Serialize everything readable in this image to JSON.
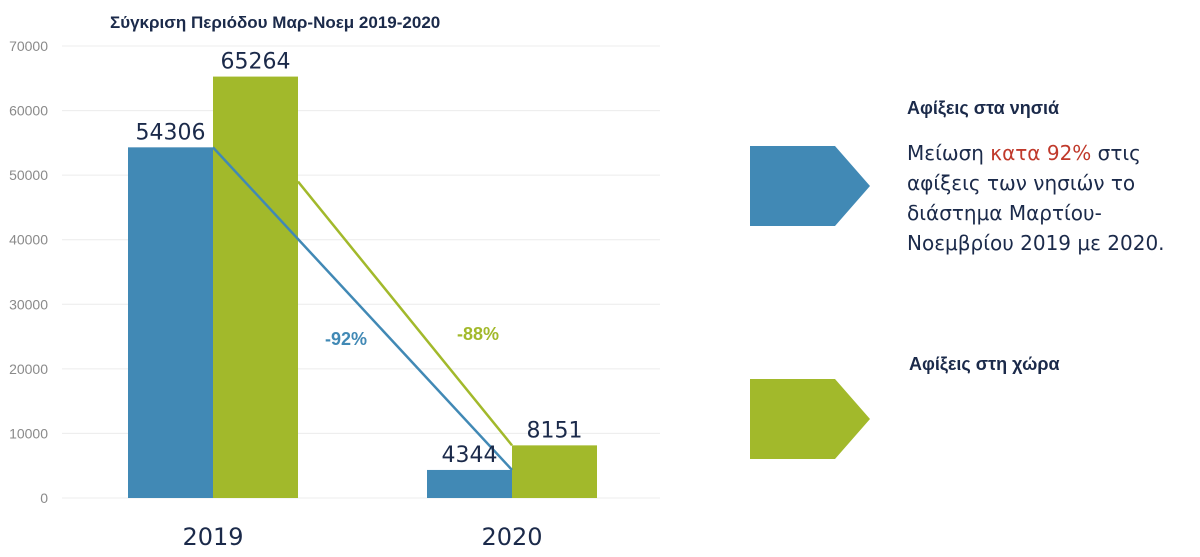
{
  "chart_data": {
    "type": "bar",
    "title": "Σύγκριση Περιόδου Μαρ-Νοεμ 2019-2020",
    "categories": [
      "2019",
      "2020"
    ],
    "series": [
      {
        "name": "Αφίξεις στα νησιά",
        "values": [
          54306,
          4344
        ],
        "labels": [
          "54306",
          "4344"
        ],
        "color": "#4189b5",
        "change_label": "-92%"
      },
      {
        "name": "Αφίξεις στη χώρα",
        "values": [
          65264,
          8151
        ],
        "labels": [
          "65264",
          "8151"
        ],
        "color": "#a2b92b",
        "change_label": "-88%"
      }
    ],
    "ylim": [
      0,
      70000
    ],
    "yticks": [
      "0",
      "10000",
      "20000",
      "30000",
      "40000",
      "50000",
      "60000",
      "70000"
    ],
    "grid": true,
    "xlabel": "",
    "ylabel": ""
  },
  "legend": {
    "islands": {
      "title": "Αφίξεις στα νησιά",
      "color": "#4189b5",
      "description_before": "Μείωση ",
      "description_highlight": "κατα 92%",
      "description_after": " στις αφίξεις των νησιών το διάστημα Μαρτίου-Νοεμβρίου 2019 με 2020.",
      "highlight_color": "#c0392b"
    },
    "country": {
      "title": "Αφίξεις στη χώρα",
      "color": "#a2b92b"
    }
  }
}
